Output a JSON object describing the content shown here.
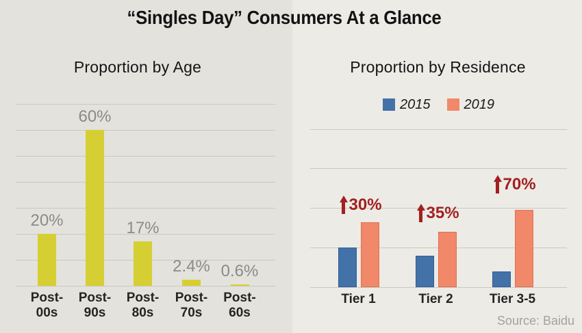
{
  "page": {
    "title": "“Singles Day” Consumers At a Glance",
    "source": "Source: Baidu",
    "background_left": "#e3e2dd",
    "background_right": "#edebe6"
  },
  "chart_data": [
    {
      "type": "bar",
      "title": "Proportion by Age",
      "categories": [
        "Post-\n00s",
        "Post-\n90s",
        "Post-\n80s",
        "Post-\n70s",
        "Post-\n60s"
      ],
      "values": [
        20,
        60,
        17,
        2.4,
        0.6
      ],
      "value_labels": [
        "20%",
        "60%",
        "17%",
        "2.4%",
        "0.6%"
      ],
      "bar_color": "#d6cf33",
      "value_label_color": "#8b8b88",
      "xlabel": "",
      "ylabel": "",
      "ylim": [
        0,
        70
      ],
      "gridline_interval": 10,
      "grid": true,
      "legend": false,
      "y_tick_labels_visible": false
    },
    {
      "type": "bar",
      "title": "Proportion by Residence",
      "categories": [
        "Tier 1",
        "Tier 2",
        "Tier 3-5"
      ],
      "series": [
        {
          "name": "2015",
          "color": "#4372a9",
          "border_color": "#2e5e98",
          "values_estimated": [
            10,
            8,
            4
          ]
        },
        {
          "name": "2019",
          "color": "#f1886a",
          "border_color": "#dd7250",
          "values_estimated": [
            16.5,
            14,
            19.5
          ]
        }
      ],
      "annotations": [
        {
          "icon": "up-arrow",
          "text": "30%"
        },
        {
          "icon": "up-arrow",
          "text": "35%"
        },
        {
          "icon": "up-arrow",
          "text": "70%"
        }
      ],
      "annotation_color": "#a32020",
      "xlabel": "",
      "ylabel": "",
      "ylim": [
        0,
        40
      ],
      "gridline_interval": 10,
      "grid": true,
      "legend": true,
      "legend_position": "top",
      "y_tick_labels_visible": false,
      "values_note": "y-axis unlabeled; values estimated from gridlines"
    }
  ]
}
